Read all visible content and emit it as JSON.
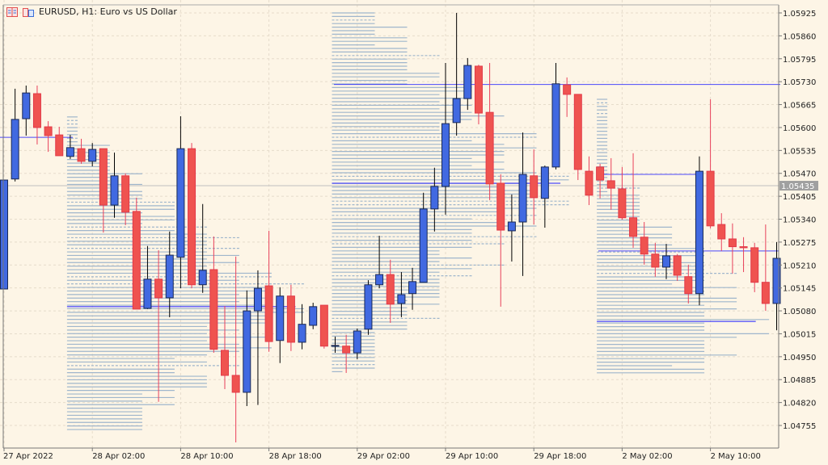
{
  "header": {
    "title": "EURUSD, H1:  Euro vs US Dollar",
    "icons": [
      "one-click-trading-icon",
      "market-depth-icon"
    ]
  },
  "colors": {
    "background": "#fdf5e6",
    "bull_body": "#4169e1",
    "bear_body": "#ef5350",
    "bull_wick": "#000000",
    "bear_wick": "#e8405a",
    "profile_line": "#9fb6cc",
    "poc_line": "#1e1eff",
    "bid_line": "#c0c0c0",
    "bid_label_bg": "#a0a0a0"
  },
  "chart_data": {
    "type": "candlestick",
    "symbol": "EURUSD",
    "timeframe": "H1",
    "ylim": [
      1.047,
      1.0594
    ],
    "y_ticks": [
      "1.05925",
      "1.05860",
      "1.05795",
      "1.05730",
      "1.05665",
      "1.05600",
      "1.05535",
      "1.05470",
      "1.05405",
      "1.05340",
      "1.05275",
      "1.05210",
      "1.05145",
      "1.05080",
      "1.05015",
      "1.04950",
      "1.04885",
      "1.04820",
      "1.04755"
    ],
    "x_ticks": [
      {
        "candle": 1,
        "label": "27 Apr 2022"
      },
      {
        "candle": 9,
        "label": "28 Apr 02:00"
      },
      {
        "candle": 17,
        "label": "28 Apr 10:00"
      },
      {
        "candle": 25,
        "label": "28 Apr 18:00"
      },
      {
        "candle": 33,
        "label": "29 Apr 02:00"
      },
      {
        "candle": 41,
        "label": "29 Apr 10:00"
      },
      {
        "candle": 49,
        "label": "29 Apr 18:00"
      },
      {
        "candle": 57,
        "label": "2 May 02:00"
      },
      {
        "candle": 65,
        "label": "2 May 10:00"
      }
    ],
    "bid_price": "1.05435",
    "grid": true,
    "ohlc": [
      [
        1.05142,
        1.05451,
        1.05142,
        1.05451
      ],
      [
        1.05454,
        1.0571,
        1.05447,
        1.05623
      ],
      [
        1.05625,
        1.05719,
        1.05577,
        1.05698
      ],
      [
        1.05696,
        1.05719,
        1.05552,
        1.056
      ],
      [
        1.05602,
        1.05618,
        1.05531,
        1.05577
      ],
      [
        1.05579,
        1.05602,
        1.0552,
        1.0552
      ],
      [
        1.05518,
        1.05579,
        1.05511,
        1.05543
      ],
      [
        1.0554,
        1.05568,
        1.05497,
        1.05504
      ],
      [
        1.05504,
        1.05556,
        1.0549,
        1.05538
      ],
      [
        1.0554,
        1.0554,
        1.05302,
        1.0538
      ],
      [
        1.0538,
        1.05529,
        1.05344,
        1.05463
      ],
      [
        1.05463,
        1.0547,
        1.05323,
        1.0536
      ],
      [
        1.05362,
        1.05401,
        1.05085,
        1.05085
      ],
      [
        1.05087,
        1.05264,
        1.05085,
        1.0517
      ],
      [
        1.0517,
        1.05252,
        1.04822,
        1.05117
      ],
      [
        1.05117,
        1.05305,
        1.05062,
        1.05238
      ],
      [
        1.05232,
        1.05632,
        1.05144,
        1.0554
      ],
      [
        1.0554,
        1.05556,
        1.05144,
        1.05154
      ],
      [
        1.05154,
        1.05383,
        1.05131,
        1.05195
      ],
      [
        1.05197,
        1.05291,
        1.04961,
        1.04971
      ],
      [
        1.04968,
        1.05094,
        1.04858,
        1.04897
      ],
      [
        1.04897,
        1.05234,
        1.04707,
        1.04849
      ],
      [
        1.04849,
        1.05138,
        1.0481,
        1.0508
      ],
      [
        1.0508,
        1.05195,
        1.04813,
        1.05144
      ],
      [
        1.05151,
        1.05307,
        1.04964,
        1.04993
      ],
      [
        1.04996,
        1.05147,
        1.04932,
        1.05122
      ],
      [
        1.05122,
        1.05154,
        1.04966,
        1.04991
      ],
      [
        1.04991,
        1.05099,
        1.04971,
        1.05042
      ],
      [
        1.05039,
        1.05103,
        1.05028,
        1.05092
      ],
      [
        1.05096,
        1.05096,
        1.04973,
        1.0498
      ],
      [
        1.04982,
        1.05007,
        1.04961,
        1.04982
      ],
      [
        1.0498,
        1.05012,
        1.04904,
        1.04961
      ],
      [
        1.04961,
        1.0503,
        1.04943,
        1.05023
      ],
      [
        1.05028,
        1.05167,
        1.05012,
        1.05154
      ],
      [
        1.05154,
        1.05293,
        1.05144,
        1.05183
      ],
      [
        1.05183,
        1.05225,
        1.05046,
        1.05099
      ],
      [
        1.05101,
        1.0519,
        1.05062,
        1.05126
      ],
      [
        1.05129,
        1.05202,
        1.05083,
        1.05163
      ],
      [
        1.05161,
        1.05415,
        1.05161,
        1.05369
      ],
      [
        1.05369,
        1.05486,
        1.05305,
        1.05433
      ],
      [
        1.05433,
        1.05783,
        1.05353,
        1.05611
      ],
      [
        1.05614,
        1.05925,
        1.05577,
        1.05682
      ],
      [
        1.05682,
        1.05797,
        1.0565,
        1.05776
      ],
      [
        1.05774,
        1.05778,
        1.05609,
        1.05641
      ],
      [
        1.05643,
        1.05783,
        1.05394,
        1.0544
      ],
      [
        1.05442,
        1.05467,
        1.05092,
        1.05309
      ],
      [
        1.05307,
        1.0541,
        1.0522,
        1.05332
      ],
      [
        1.05332,
        1.05586,
        1.05179,
        1.05467
      ],
      [
        1.05463,
        1.05538,
        1.05325,
        1.05401
      ],
      [
        1.05399,
        1.05492,
        1.05316,
        1.05488
      ],
      [
        1.05488,
        1.05783,
        1.05481,
        1.05724
      ],
      [
        1.05721,
        1.05742,
        1.0563,
        1.05694
      ],
      [
        1.05694,
        1.05694,
        1.05451,
        1.05481
      ],
      [
        1.05476,
        1.05518,
        1.0538,
        1.05408
      ],
      [
        1.05488,
        1.05497,
        1.05399,
        1.05451
      ],
      [
        1.05449,
        1.05513,
        1.05367,
        1.05428
      ],
      [
        1.05426,
        1.05488,
        1.05339,
        1.05344
      ],
      [
        1.05344,
        1.05527,
        1.05259,
        1.05291
      ],
      [
        1.05289,
        1.05332,
        1.05211,
        1.05241
      ],
      [
        1.05241,
        1.05273,
        1.05177,
        1.05204
      ],
      [
        1.05204,
        1.0527,
        1.0517,
        1.05236
      ],
      [
        1.05236,
        1.05241,
        1.05165,
        1.05181
      ],
      [
        1.05177,
        1.05211,
        1.05101,
        1.05129
      ],
      [
        1.05129,
        1.05518,
        1.05096,
        1.05476
      ],
      [
        1.05476,
        1.0568,
        1.05314,
        1.05321
      ],
      [
        1.05325,
        1.05357,
        1.0525,
        1.05284
      ],
      [
        1.05284,
        1.05328,
        1.05186,
        1.05262
      ],
      [
        1.05262,
        1.05289,
        1.0519,
        1.05259
      ],
      [
        1.05259,
        1.05273,
        1.05133,
        1.05161
      ],
      [
        1.05161,
        1.05325,
        1.0508,
        1.05101
      ],
      [
        1.05101,
        1.05275,
        1.05025,
        1.05229
      ]
    ],
    "volume_profiles": [
      {
        "start_candle": 7,
        "end_candle": 30,
        "price_high": 1.0563,
        "price_low": 1.0474,
        "poc": 1.05092
      },
      {
        "start_candle": 31,
        "end_candle": 54,
        "price_high": 1.05925,
        "price_low": 1.049,
        "poc": 1.05442
      },
      {
        "start_candle": 55,
        "end_candle": 71,
        "price_high": 1.0568,
        "price_low": 1.049,
        "poc": 1.0505
      }
    ],
    "poc_extensions": [
      1.05572,
      1.05722,
      1.05467,
      1.0525
    ]
  }
}
